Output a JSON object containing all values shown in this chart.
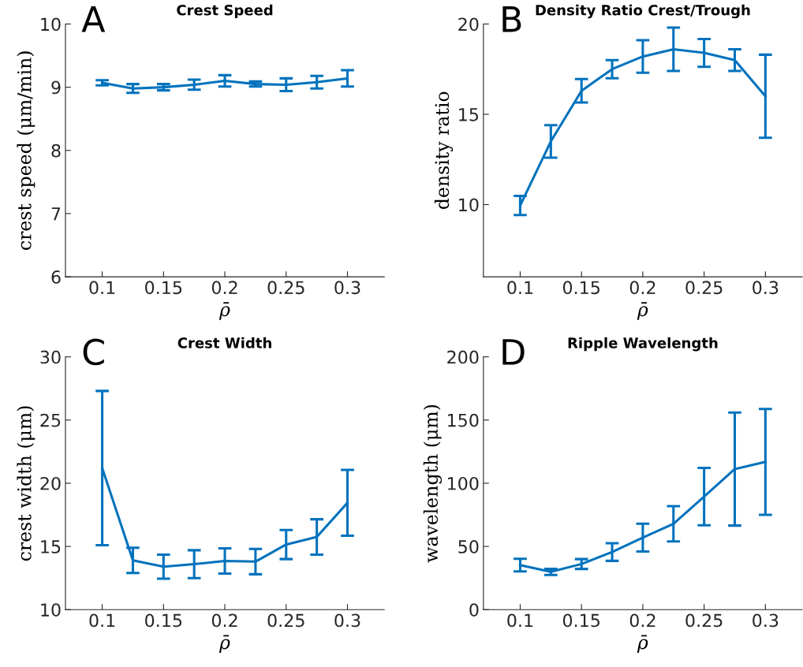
{
  "chart_data": [
    {
      "type": "line",
      "title": "Crest Speed",
      "xlabel": "ρ̄",
      "ylabel": "crest speed (μm/min)",
      "annotations": [
        "A"
      ],
      "x": [
        0.1,
        0.125,
        0.15,
        0.175,
        0.2,
        0.225,
        0.25,
        0.275,
        0.3
      ],
      "xlim": [
        0.07,
        0.33
      ],
      "xticks": [
        0.1,
        0.15,
        0.2,
        0.25,
        0.3
      ],
      "ylim": [
        6,
        10
      ],
      "yticks": [
        6,
        7,
        8,
        9,
        10
      ],
      "series": [
        {
          "color": "#0072bd",
          "values": [
            9.07,
            8.98,
            9.0,
            9.04,
            9.1,
            9.05,
            9.04,
            9.08,
            9.14
          ],
          "errors": [
            0.04,
            0.07,
            0.05,
            0.08,
            0.09,
            0.04,
            0.1,
            0.1,
            0.13
          ]
        }
      ]
    },
    {
      "type": "line",
      "title": "Density Ratio Crest/Trough",
      "xlabel": "ρ̄",
      "ylabel": "density ratio",
      "annotations": [
        "B"
      ],
      "x": [
        0.1,
        0.125,
        0.15,
        0.175,
        0.2,
        0.225,
        0.25,
        0.275,
        0.3
      ],
      "xlim": [
        0.07,
        0.33
      ],
      "xticks": [
        0.1,
        0.15,
        0.2,
        0.25,
        0.3
      ],
      "ylim": [
        6,
        20
      ],
      "yticks": [
        10,
        15,
        20
      ],
      "series": [
        {
          "color": "#0072bd",
          "values": [
            9.95,
            13.5,
            16.3,
            17.5,
            18.2,
            18.6,
            18.4,
            18.0,
            16.0
          ],
          "errors": [
            0.53,
            0.9,
            0.65,
            0.5,
            0.9,
            1.2,
            0.77,
            0.6,
            2.3
          ]
        }
      ]
    },
    {
      "type": "line",
      "title": "Crest Width",
      "xlabel": "ρ̄",
      "ylabel": "crest width (μm)",
      "annotations": [
        "C"
      ],
      "x": [
        0.1,
        0.125,
        0.15,
        0.175,
        0.2,
        0.225,
        0.25,
        0.275,
        0.3
      ],
      "xlim": [
        0.07,
        0.33
      ],
      "xticks": [
        0.1,
        0.15,
        0.2,
        0.25,
        0.3
      ],
      "ylim": [
        10,
        30
      ],
      "yticks": [
        10,
        15,
        20,
        25,
        30
      ],
      "series": [
        {
          "color": "#0072bd",
          "values": [
            21.2,
            13.9,
            13.4,
            13.6,
            13.85,
            13.8,
            15.15,
            15.75,
            18.45
          ],
          "errors": [
            6.1,
            1.0,
            0.95,
            1.1,
            1.0,
            1.0,
            1.15,
            1.4,
            2.6
          ]
        }
      ]
    },
    {
      "type": "line",
      "title": "Ripple Wavelength",
      "xlabel": "ρ̄",
      "ylabel": "wavelength (μm)",
      "annotations": [
        "D"
      ],
      "x": [
        0.1,
        0.125,
        0.15,
        0.175,
        0.2,
        0.225,
        0.25,
        0.275,
        0.3
      ],
      "xlim": [
        0.07,
        0.33
      ],
      "xticks": [
        0.1,
        0.15,
        0.2,
        0.25,
        0.3
      ],
      "ylim": [
        0,
        200
      ],
      "yticks": [
        0,
        50,
        100,
        150,
        200
      ],
      "series": [
        {
          "color": "#0072bd",
          "values": [
            35.2,
            29.9,
            36.1,
            45.6,
            57,
            67.9,
            89.4,
            111.2,
            116.9
          ],
          "errors": [
            5,
            2.4,
            3.9,
            7,
            11,
            14,
            22.7,
            44.7,
            41.9
          ]
        }
      ]
    }
  ]
}
